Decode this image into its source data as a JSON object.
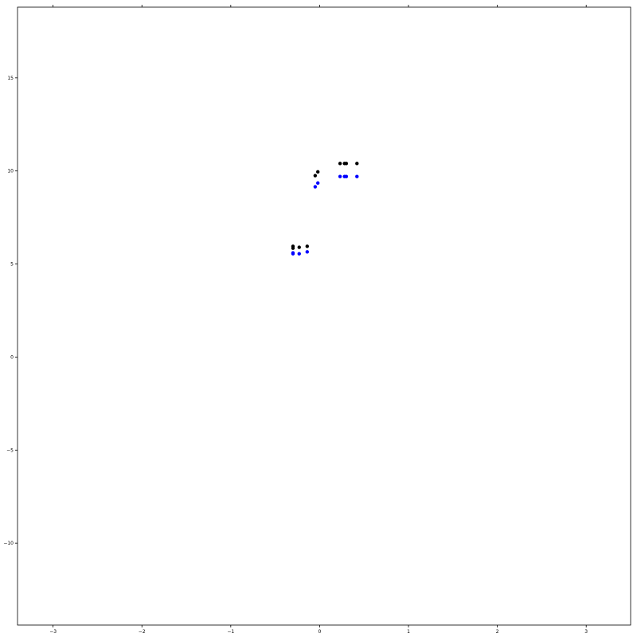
{
  "chart_data": {
    "type": "scatter",
    "title": "",
    "xlabel": "",
    "ylabel": "",
    "xlim": [
      -3.4,
      3.5
    ],
    "ylim": [
      -14.4,
      18.8
    ],
    "grid": false,
    "x_ticks": [
      -3,
      -2,
      -1,
      0,
      1,
      2,
      3
    ],
    "y_ticks": [
      -10,
      -5,
      0,
      5,
      10,
      15
    ],
    "series": [
      {
        "color": "#000000",
        "points": [
          {
            "x": -0.3,
            "y": 5.95
          },
          {
            "x": -0.3,
            "y": 5.85
          },
          {
            "x": -0.23,
            "y": 5.9
          },
          {
            "x": -0.14,
            "y": 5.95
          },
          {
            "x": -0.05,
            "y": 9.75
          },
          {
            "x": -0.02,
            "y": 9.95
          },
          {
            "x": 0.23,
            "y": 10.4
          },
          {
            "x": 0.28,
            "y": 10.4
          },
          {
            "x": 0.3,
            "y": 10.4
          },
          {
            "x": 0.42,
            "y": 10.4
          }
        ]
      },
      {
        "color": "#0000ff",
        "points": [
          {
            "x": -0.3,
            "y": 5.6
          },
          {
            "x": -0.3,
            "y": 5.55
          },
          {
            "x": -0.23,
            "y": 5.55
          },
          {
            "x": -0.14,
            "y": 5.65
          },
          {
            "x": -0.05,
            "y": 9.15
          },
          {
            "x": -0.02,
            "y": 9.35
          },
          {
            "x": 0.23,
            "y": 9.7
          },
          {
            "x": 0.28,
            "y": 9.7
          },
          {
            "x": 0.3,
            "y": 9.7
          },
          {
            "x": 0.42,
            "y": 9.7
          }
        ]
      }
    ]
  }
}
